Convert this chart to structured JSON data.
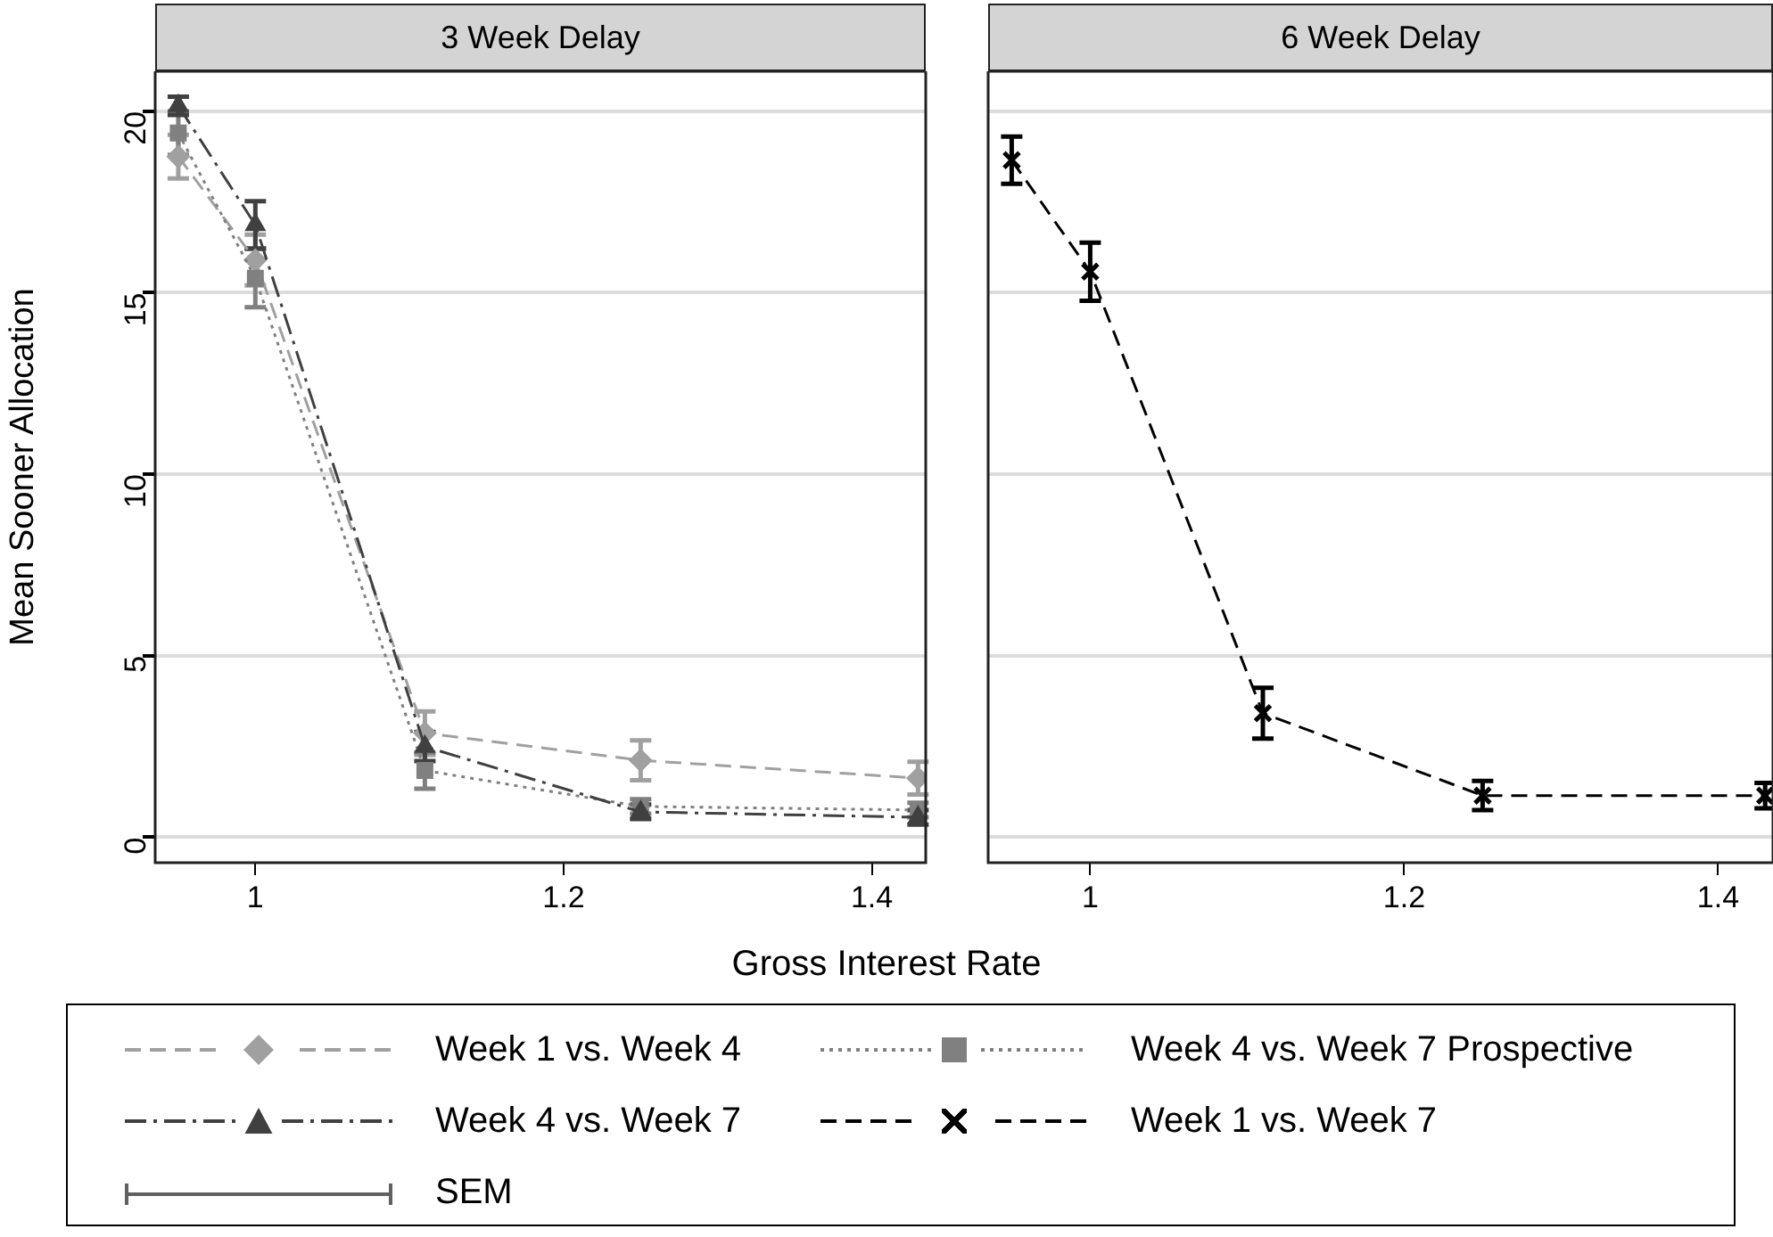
{
  "chart_data": [
    {
      "type": "line",
      "title": "3 Week Delay",
      "xlabel": "Gross Interest Rate",
      "ylabel": "Mean Sooner Allocation",
      "x": [
        0.95,
        1,
        1.11,
        1.25,
        1.43
      ],
      "xlim": [
        0.935,
        1.435
      ],
      "xticks": [
        1,
        1.2,
        1.4
      ],
      "ylim": [
        -0.7,
        21.1
      ],
      "yticks": [
        0,
        5,
        10,
        15,
        20
      ],
      "grid": "y",
      "legend": "bottom",
      "annotations": [
        "SEM"
      ],
      "series": [
        {
          "name": "Week 1 vs. Week 4",
          "color": "#a0a0a0",
          "marker": "diamond",
          "line_style": "dashed",
          "values": [
            18.75,
            15.9,
            2.87,
            2.12,
            1.63
          ],
          "errors": [
            0.6,
            0.7,
            0.6,
            0.55,
            0.45
          ]
        },
        {
          "name": "Week 4 vs. Week 7 Prospective",
          "color": "#808080",
          "marker": "square",
          "line_style": "dotted",
          "values": [
            19.4,
            15.4,
            1.84,
            0.85,
            0.75
          ],
          "errors": [
            0.6,
            0.8,
            0.5,
            0.2,
            0.2
          ]
        },
        {
          "name": "Week 4 vs. Week 7",
          "color": "#404040",
          "marker": "triangle",
          "line_style": "dashdot",
          "values": [
            20.15,
            16.87,
            2.5,
            0.7,
            0.55
          ],
          "errors": [
            0.25,
            0.65,
            0.4,
            0.2,
            0.2
          ]
        }
      ]
    },
    {
      "type": "line",
      "title": "6 Week Delay",
      "x": [
        0.95,
        1,
        1.11,
        1.25,
        1.43
      ],
      "xlim": [
        0.935,
        1.435
      ],
      "xticks": [
        1,
        1.2,
        1.4
      ],
      "ylim": [
        -0.7,
        21.1
      ],
      "yticks": [
        0,
        5,
        10,
        15,
        20
      ],
      "grid": "y",
      "legend": "bottom",
      "tick_labels": "x",
      "series": [
        {
          "name": "Week 1 vs. Week 7",
          "color": "#000000",
          "marker": "cross",
          "line_style": "dashed",
          "values": [
            18.65,
            15.58,
            3.42,
            1.15,
            1.15
          ],
          "errors": [
            0.65,
            0.8,
            0.7,
            0.4,
            0.35
          ]
        }
      ]
    }
  ]
}
